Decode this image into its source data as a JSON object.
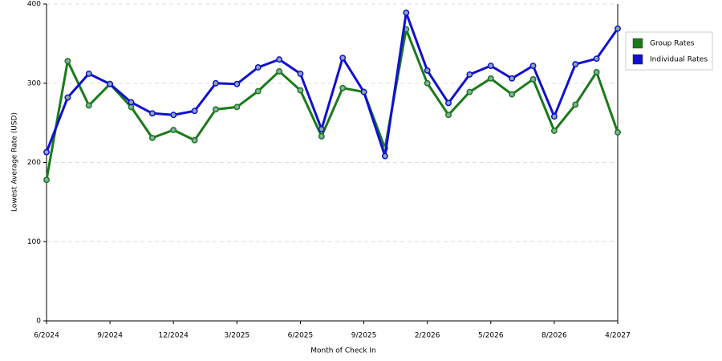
{
  "chart_data": {
    "type": "line",
    "x_label": "Month of Check In",
    "y_label": "Lowest Average Rate (USD)",
    "categories": [
      "6/2024",
      null,
      null,
      "9/2024",
      null,
      null,
      "12/2024",
      null,
      null,
      "3/2025",
      null,
      null,
      "6/2025",
      null,
      null,
      "9/2025",
      null,
      null,
      "2/2026",
      null,
      null,
      "5/2026",
      null,
      null,
      "8/2026",
      null,
      null,
      "4/2027"
    ],
    "series": [
      {
        "name": "Group Rates",
        "color": "#1a7a1a",
        "values": [
          178,
          328,
          272,
          299,
          270,
          231,
          241,
          228,
          267,
          270,
          290,
          315,
          291,
          233,
          294,
          289,
          218,
          368,
          300,
          260,
          289,
          306,
          286,
          305,
          240,
          273,
          314,
          238
        ]
      },
      {
        "name": "Individual Rates",
        "color": "#1010d0",
        "values": [
          213,
          282,
          312,
          299,
          276,
          262,
          260,
          265,
          300,
          299,
          320,
          330,
          312,
          242,
          332,
          289,
          208,
          389,
          316,
          275,
          311,
          322,
          306,
          322,
          258,
          324,
          331,
          369
        ]
      }
    ],
    "ylim": [
      0,
      400
    ],
    "yticks": [
      0,
      100,
      200,
      300,
      400
    ],
    "grid": true,
    "legend": "right"
  }
}
